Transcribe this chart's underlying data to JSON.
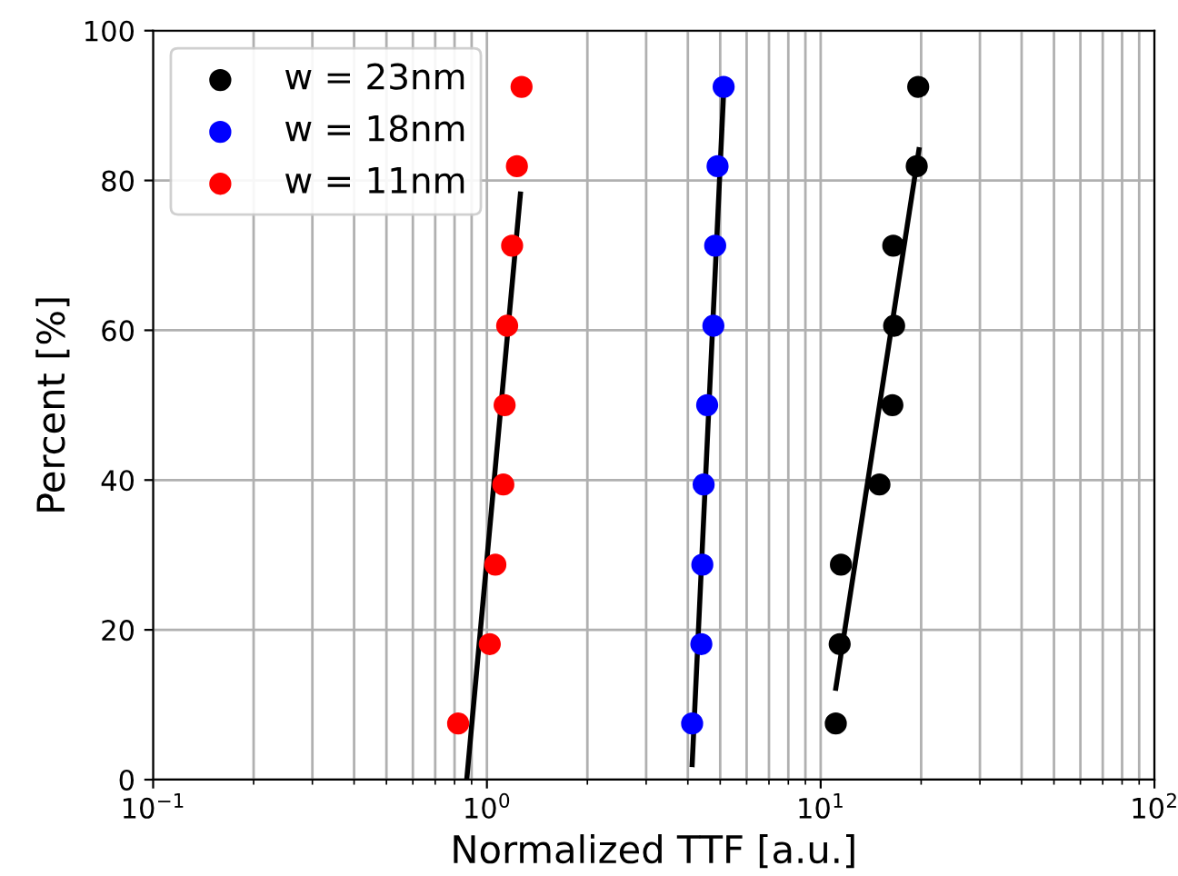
{
  "chart_data": {
    "type": "scatter",
    "xlabel": "Normalized TTF [a.u.]",
    "ylabel": "Percent [%]",
    "log": "x",
    "grid": true,
    "legend": "top left",
    "marker": "circle",
    "xlim": [
      0.1,
      100
    ],
    "xticks": [
      {
        "value": 0.1,
        "label": "10$^{−1}$"
      },
      {
        "value": 1,
        "label": "10$^{0}$"
      },
      {
        "value": 10,
        "label": "10$^{1}$"
      },
      {
        "value": 100,
        "label": "10$^{2}$"
      }
    ],
    "ylim": [
      0,
      100
    ],
    "yticks": [
      0,
      20,
      40,
      60,
      80,
      100
    ],
    "series": [
      {
        "name": "w = 23nm",
        "color": "#000000",
        "x": [
          11.1,
          11.4,
          11.5,
          15.0,
          16.4,
          16.6,
          16.5,
          19.4,
          19.6
        ],
        "values": [
          7.5,
          18.1,
          28.7,
          39.4,
          50,
          60.6,
          71.3,
          81.9,
          92.5
        ]
      },
      {
        "name": "w = 18nm",
        "color": "#0000ff",
        "x": [
          4.12,
          4.39,
          4.42,
          4.46,
          4.57,
          4.77,
          4.83,
          4.91,
          5.12
        ],
        "values": [
          7.5,
          18.1,
          28.7,
          39.4,
          50,
          60.6,
          71.3,
          81.9,
          92.5
        ]
      },
      {
        "name": "w = 11nm",
        "color": "#ff0000",
        "x": [
          0.82,
          1.02,
          1.06,
          1.12,
          1.13,
          1.15,
          1.19,
          1.23,
          1.27
        ],
        "values": [
          7.5,
          18.1,
          28.7,
          39.4,
          50,
          60.6,
          71.3,
          81.9,
          92.5
        ]
      },
      {
        "type": "line",
        "marker": "none",
        "color": "#000000",
        "x": [
          11.1,
          19.7
        ],
        "values": [
          12.2,
          84.1
        ]
      },
      {
        "type": "line",
        "marker": "none",
        "color": "#000000",
        "x": [
          4.12,
          5.12
        ],
        "values": [
          2.0,
          91.8
        ]
      },
      {
        "type": "line",
        "marker": "none",
        "color": "#000000",
        "x": [
          0.87,
          1.26
        ],
        "values": [
          0,
          78.2
        ]
      }
    ]
  }
}
